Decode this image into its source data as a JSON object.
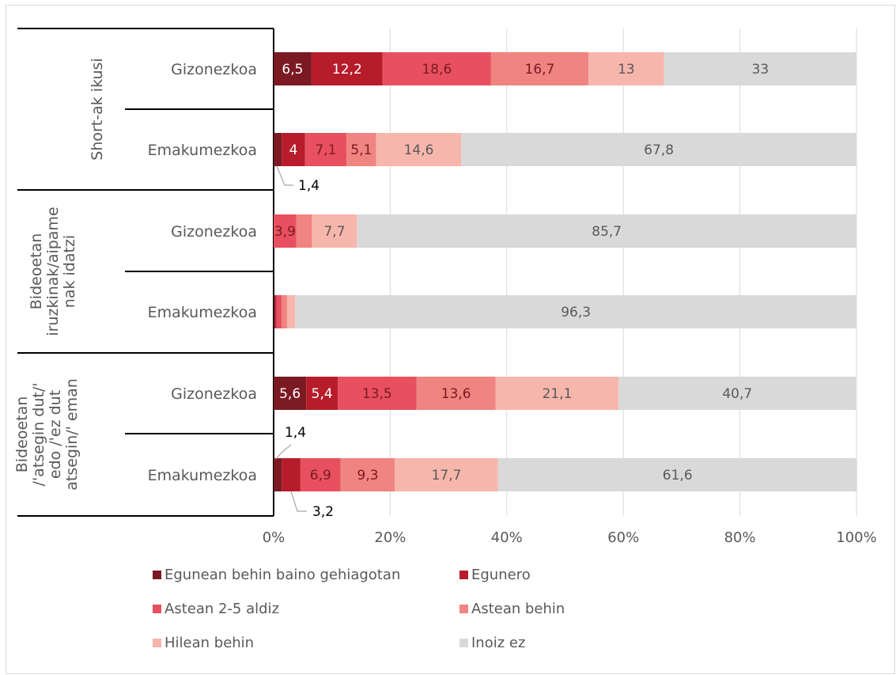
{
  "chart_data": {
    "type": "bar",
    "stacked": true,
    "orientation": "horizontal",
    "percent": true,
    "groups": [
      {
        "label": "Short-ak ikusi",
        "rows": [
          "Gizonezkoa",
          "Emakumezkoa"
        ]
      },
      {
        "label": "Bideoetan iruzkinak/aipamenak idatzi",
        "label_lines": [
          "Bideoetan",
          "iruzkinak/aipame",
          "nak idatzi"
        ],
        "rows": [
          "Gizonezkoa",
          "Emakumezkoa"
        ]
      },
      {
        "label": "Bideoetan /'atsegin dut/' edo /'ez dut atsegin/' eman",
        "label_lines": [
          "Bideoetan",
          "/'atsegin dut/'",
          "edo /'ez dut",
          "atsegin/' eman"
        ],
        "rows": [
          "Gizonezkoa",
          "Emakumezkoa"
        ]
      }
    ],
    "categories": [
      "Gizonezkoa",
      "Emakumezkoa",
      "Gizonezkoa",
      "Emakumezkoa",
      "Gizonezkoa",
      "Emakumezkoa"
    ],
    "series": [
      {
        "name": "Egunean behin baino gehiagotan",
        "color": "#7b1a22",
        "values": [
          6.5,
          1.4,
          0,
          0.3,
          5.6,
          1.4
        ],
        "labels": [
          "6,5",
          "1,4",
          "",
          "",
          "5,6",
          "1,4"
        ]
      },
      {
        "name": "Egunero",
        "color": "#b71c2b",
        "values": [
          12.2,
          4,
          0,
          0.2,
          5.4,
          3.2
        ],
        "labels": [
          "12,2",
          "4",
          "",
          "",
          "5,4",
          "3,2"
        ]
      },
      {
        "name": "Astean 2-5 aldiz",
        "color": "#e8505f",
        "values": [
          18.6,
          7.1,
          3.9,
          0.9,
          13.5,
          6.9
        ],
        "labels": [
          "18,6",
          "7,1",
          "3,9",
          "",
          "13,5",
          "6,9"
        ]
      },
      {
        "name": "Astean behin",
        "color": "#ef8480",
        "values": [
          16.7,
          5.1,
          2.7,
          0.9,
          13.6,
          9.3
        ],
        "labels": [
          "16,7",
          "5,1",
          "",
          "",
          "13,6",
          "9,3"
        ]
      },
      {
        "name": "Hilean behin",
        "color": "#f7b6ac",
        "values": [
          13,
          14.6,
          7.7,
          1.4,
          21.1,
          17.7
        ],
        "labels": [
          "13",
          "14,6",
          "7,7",
          "",
          "21,1",
          "17,7"
        ]
      },
      {
        "name": "Inoiz ez",
        "color": "#d9d9d9",
        "values": [
          33,
          67.8,
          85.7,
          96.3,
          40.7,
          61.6
        ],
        "labels": [
          "33",
          "67,8",
          "85,7",
          "96,3",
          "40,7",
          "61,6"
        ]
      }
    ],
    "xticks": [
      "0%",
      "20%",
      "40%",
      "60%",
      "80%",
      "100%"
    ],
    "xlim": [
      0,
      100
    ],
    "grid": true,
    "legend_position": "bottom"
  }
}
